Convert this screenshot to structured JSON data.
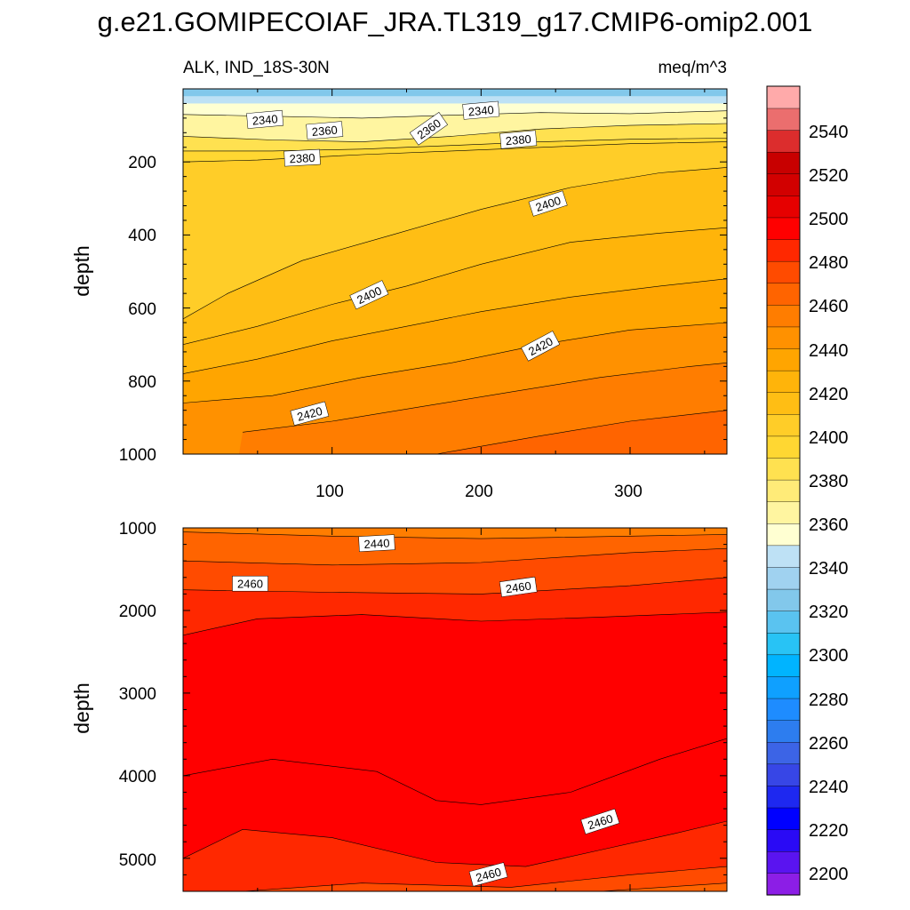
{
  "title": "g.e21.GOMIPECOIAF_JRA.TL319_g17.CMIP6-omip2.001",
  "panels": [
    {
      "left_label": "ALK, IND_18S-30N",
      "right_label": "meq/m^3",
      "y_label": "depth",
      "y_ticks": [
        "200",
        "400",
        "600",
        "800",
        "1000"
      ],
      "x_ticks": [
        "100",
        "200",
        "300"
      ],
      "contour_labels": [
        "2340",
        "2360",
        "2340",
        "2360",
        "2380",
        "2380",
        "2400",
        "2400",
        "2420",
        "2420"
      ]
    },
    {
      "y_label": "depth",
      "y_ticks": [
        "1000",
        "2000",
        "3000",
        "4000",
        "5000"
      ],
      "contour_labels": [
        "2440",
        "2460",
        "2460",
        "2460",
        "2460"
      ]
    }
  ],
  "colorbar": {
    "tick_labels": [
      "2200",
      "2220",
      "2240",
      "2260",
      "2280",
      "2300",
      "2320",
      "2340",
      "2360",
      "2380",
      "2400",
      "2420",
      "2440",
      "2460",
      "2480",
      "2500",
      "2520",
      "2540"
    ],
    "colors": [
      "#8c1ee6",
      "#5a14f0",
      "#2a0af5",
      "#0000ff",
      "#1e28f0",
      "#3746e6",
      "#3c64e6",
      "#2d7def",
      "#1e8cff",
      "#0fa0ff",
      "#00b4ff",
      "#28c3f5",
      "#5ac3f0",
      "#82c8eb",
      "#a0d2f0",
      "#bee1f5",
      "#ffffd2",
      "#fff5a0",
      "#ffeb78",
      "#ffe150",
      "#ffd732",
      "#ffcd28",
      "#ffbe14",
      "#ffb40a",
      "#ffa500",
      "#ff9100",
      "#ff7d00",
      "#ff6400",
      "#ff4b00",
      "#ff2800",
      "#ff0000",
      "#e60000",
      "#d20000",
      "#c80000",
      "#dc2d2d",
      "#eb6e6e",
      "#ffaaaa"
    ]
  },
  "chart_data": [
    {
      "type": "heatmap",
      "title": "g.e21.GOMIPECOIAF_JRA.TL319_g17.CMIP6-omip2.001",
      "variable": "ALK, IND_18S-30N",
      "units": "meq/m^3",
      "xlabel": "",
      "ylabel": "depth",
      "xlim": [
        0,
        365
      ],
      "ylim": [
        1000,
        0
      ],
      "x_ticks": [
        100,
        200,
        300
      ],
      "y_ticks": [
        200,
        400,
        600,
        800,
        1000
      ],
      "contour_interval": 10,
      "contours": [
        {
          "level": 2340,
          "depth": [
            [
              0,
              70
            ],
            [
              60,
              75
            ],
            [
              120,
              80
            ],
            [
              180,
              72
            ],
            [
              240,
              65
            ],
            [
              300,
              68
            ],
            [
              365,
              60
            ]
          ]
        },
        {
          "level": 2360,
          "depth": [
            [
              0,
              130
            ],
            [
              60,
              140
            ],
            [
              120,
              145
            ],
            [
              180,
              130
            ],
            [
              240,
              110
            ],
            [
              300,
              100
            ],
            [
              365,
              95
            ]
          ]
        },
        {
          "level": 2370,
          "depth": [
            [
              0,
              170
            ],
            [
              60,
              170
            ],
            [
              120,
              165
            ],
            [
              180,
              155
            ],
            [
              240,
              145
            ],
            [
              300,
              138
            ],
            [
              365,
              135
            ]
          ]
        },
        {
          "level": 2380,
          "depth": [
            [
              0,
              200
            ],
            [
              50,
              195
            ],
            [
              120,
              180
            ],
            [
              180,
              170
            ],
            [
              240,
              160
            ],
            [
              300,
              150
            ],
            [
              365,
              145
            ]
          ]
        },
        {
          "level": 2390,
          "depth": [
            [
              0,
              630
            ],
            [
              30,
              560
            ],
            [
              80,
              470
            ],
            [
              140,
              400
            ],
            [
              200,
              330
            ],
            [
              260,
              270
            ],
            [
              320,
              230
            ],
            [
              365,
              215
            ]
          ]
        },
        {
          "level": 2400,
          "depth": [
            [
              0,
              700
            ],
            [
              50,
              650
            ],
            [
              100,
              590
            ],
            [
              150,
              540
            ],
            [
              200,
              480
            ],
            [
              260,
              420
            ],
            [
              320,
              395
            ],
            [
              365,
              380
            ]
          ]
        },
        {
          "level": 2410,
          "depth": [
            [
              0,
              780
            ],
            [
              50,
              740
            ],
            [
              100,
              690
            ],
            [
              150,
              650
            ],
            [
              200,
              610
            ],
            [
              260,
              570
            ],
            [
              320,
              540
            ],
            [
              365,
              520
            ]
          ]
        },
        {
          "level": 2420,
          "depth": [
            [
              0,
              860
            ],
            [
              60,
              840
            ],
            [
              120,
              790
            ],
            [
              180,
              750
            ],
            [
              240,
              700
            ],
            [
              300,
              660
            ],
            [
              365,
              640
            ]
          ]
        },
        {
          "level": 2430,
          "depth": [
            [
              40,
              940
            ],
            [
              100,
              910
            ],
            [
              160,
              870
            ],
            [
              220,
              830
            ],
            [
              280,
              790
            ],
            [
              340,
              760
            ],
            [
              365,
              750
            ]
          ]
        },
        {
          "level": 2440,
          "depth": [
            [
              170,
              1000
            ],
            [
              240,
              950
            ],
            [
              300,
              910
            ],
            [
              365,
              880
            ]
          ]
        }
      ]
    },
    {
      "type": "heatmap",
      "xlabel": "",
      "ylabel": "depth",
      "xlim": [
        0,
        365
      ],
      "ylim": [
        5400,
        1000
      ],
      "y_ticks": [
        1000,
        2000,
        3000,
        4000,
        5000
      ],
      "contour_interval": 10,
      "contours": [
        {
          "level": 2440,
          "depth": [
            [
              0,
              1050
            ],
            [
              100,
              1100
            ],
            [
              200,
              1130
            ],
            [
              300,
              1100
            ],
            [
              365,
              1080
            ]
          ]
        },
        {
          "level": 2450,
          "depth": [
            [
              0,
              1400
            ],
            [
              100,
              1450
            ],
            [
              200,
              1420
            ],
            [
              300,
              1300
            ],
            [
              365,
              1250
            ]
          ]
        },
        {
          "level": 2460,
          "depth": [
            [
              0,
              1750
            ],
            [
              100,
              1780
            ],
            [
              200,
              1800
            ],
            [
              300,
              1700
            ],
            [
              365,
              1600
            ]
          ]
        },
        {
          "level": 2470,
          "depth": [
            [
              0,
              2300
            ],
            [
              50,
              2100
            ],
            [
              120,
              2050
            ],
            [
              200,
              2130
            ],
            [
              280,
              2080
            ],
            [
              365,
              2020
            ]
          ]
        },
        {
          "level": 2470,
          "depth": [
            [
              0,
              4000
            ],
            [
              60,
              3800
            ],
            [
              130,
              3950
            ],
            [
              170,
              4300
            ],
            [
              200,
              4350
            ],
            [
              260,
              4200
            ],
            [
              320,
              3800
            ],
            [
              365,
              3550
            ]
          ]
        },
        {
          "level": 2460,
          "depth": [
            [
              0,
              5000
            ],
            [
              40,
              4650
            ],
            [
              100,
              4750
            ],
            [
              170,
              5050
            ],
            [
              230,
              5100
            ],
            [
              280,
              4900
            ],
            [
              330,
              4700
            ],
            [
              365,
              4550
            ]
          ]
        },
        {
          "level": 2450,
          "depth": [
            [
              40,
              5400
            ],
            [
              120,
              5300
            ],
            [
              220,
              5350
            ],
            [
              300,
              5200
            ],
            [
              365,
              5100
            ]
          ]
        },
        {
          "level": 2440,
          "depth": [
            [
              280,
              5400
            ],
            [
              365,
              5300
            ]
          ]
        }
      ]
    }
  ]
}
